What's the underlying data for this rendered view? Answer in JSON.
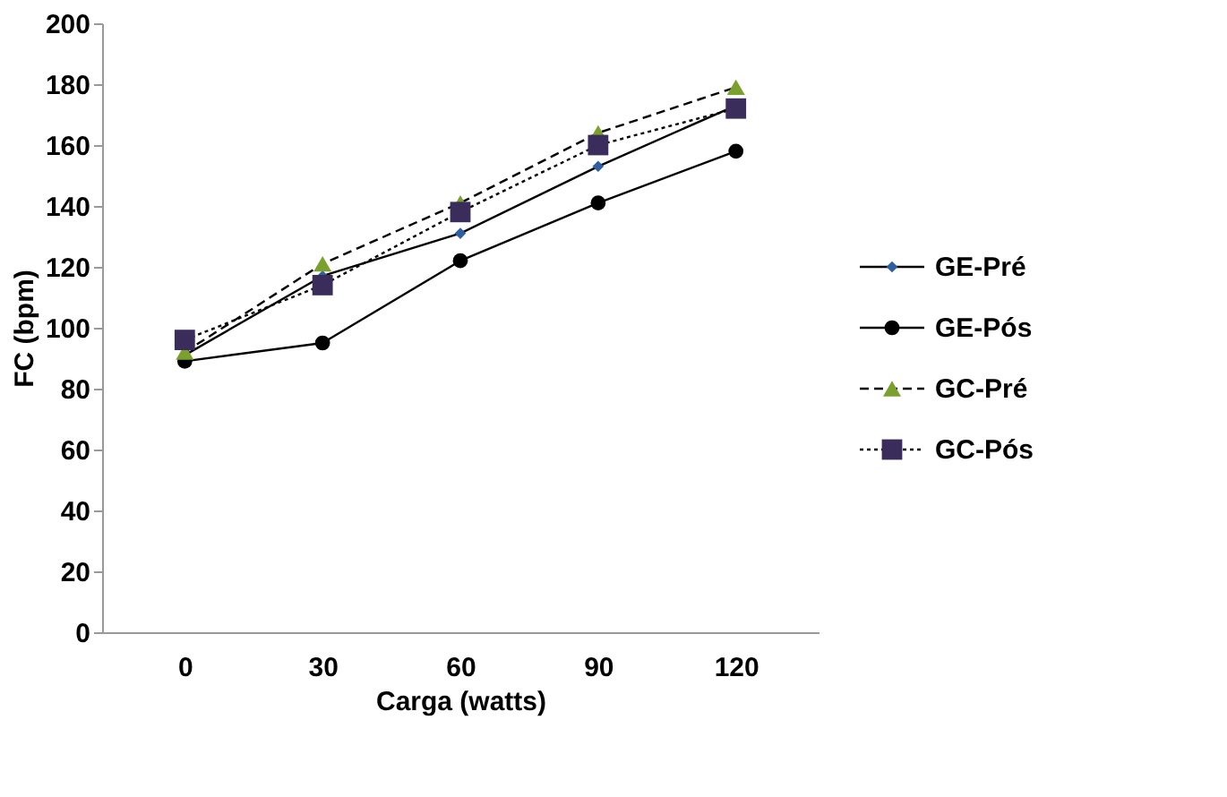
{
  "chart_data": {
    "type": "line",
    "xlabel": "Carga (watts)",
    "ylabel": "FC (bpm)",
    "categories": [
      "0",
      "30",
      "60",
      "90",
      "120"
    ],
    "ylim": [
      0,
      200
    ],
    "yticks": [
      0,
      20,
      40,
      60,
      80,
      100,
      120,
      140,
      160,
      180,
      200
    ],
    "grid": false,
    "legend": "right",
    "series": [
      {
        "name": "GE-Pré",
        "color": "#2e5fa0",
        "marker": "diamond",
        "line_style": "solid",
        "values": [
          91,
          117,
          131,
          153,
          173
        ]
      },
      {
        "name": "GE-Pós",
        "color": "#000000",
        "marker": "circle",
        "line_style": "solid",
        "values": [
          89,
          95,
          122,
          141,
          158
        ]
      },
      {
        "name": "GC-Pré",
        "color": "#7aa02e",
        "marker": "triangle",
        "line_style": "dashed",
        "values": [
          92,
          121,
          141,
          164,
          179
        ]
      },
      {
        "name": "GC-Pós",
        "color": "#3a2d5c",
        "marker": "square",
        "line_style": "dotted",
        "values": [
          96,
          114,
          138,
          160,
          172
        ]
      }
    ]
  }
}
